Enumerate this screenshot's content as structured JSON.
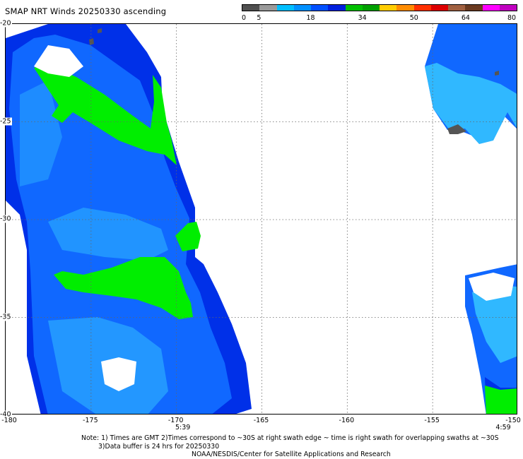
{
  "title": "SMAP NRT Winds 20250330 ascending",
  "colorbar": {
    "labels": [
      "0",
      "5",
      "18",
      "34",
      "50",
      "64",
      "80"
    ],
    "segments": [
      "#505050",
      "#9a9a9a",
      "#00bfff",
      "#0090ff",
      "#0050ff",
      "#0020dd",
      "#00c000",
      "#00a000",
      "#ffcc00",
      "#ff8c00",
      "#ff3000",
      "#dd0000",
      "#a06040",
      "#6a3a20",
      "#ff00ff",
      "#c000c0"
    ]
  },
  "lat_labels": [
    "-20",
    "-25",
    "-30",
    "-35",
    "-40"
  ],
  "lon_labels": [
    "-180",
    "-175",
    "-170",
    "-165",
    "-160",
    "-155",
    "-150"
  ],
  "times": [
    {
      "text": "5:39"
    },
    {
      "text": "4:59"
    }
  ],
  "note_line1": "Note: 1) Times are GMT 2)Times correspond to ~30S at right swath edge ~ time is right swath for overlapping swaths at ~30S",
  "note_line2": "3)Data buffer is 24 hrs for 20250330",
  "credit": "NOAA/NESDIS/Center for Satellite Applications and Research",
  "colors": {
    "deep_blue": "#0030e8",
    "mid_blue": "#1068ff",
    "light_blue": "#30b8ff",
    "green": "#00ee00",
    "land": "#555555"
  }
}
